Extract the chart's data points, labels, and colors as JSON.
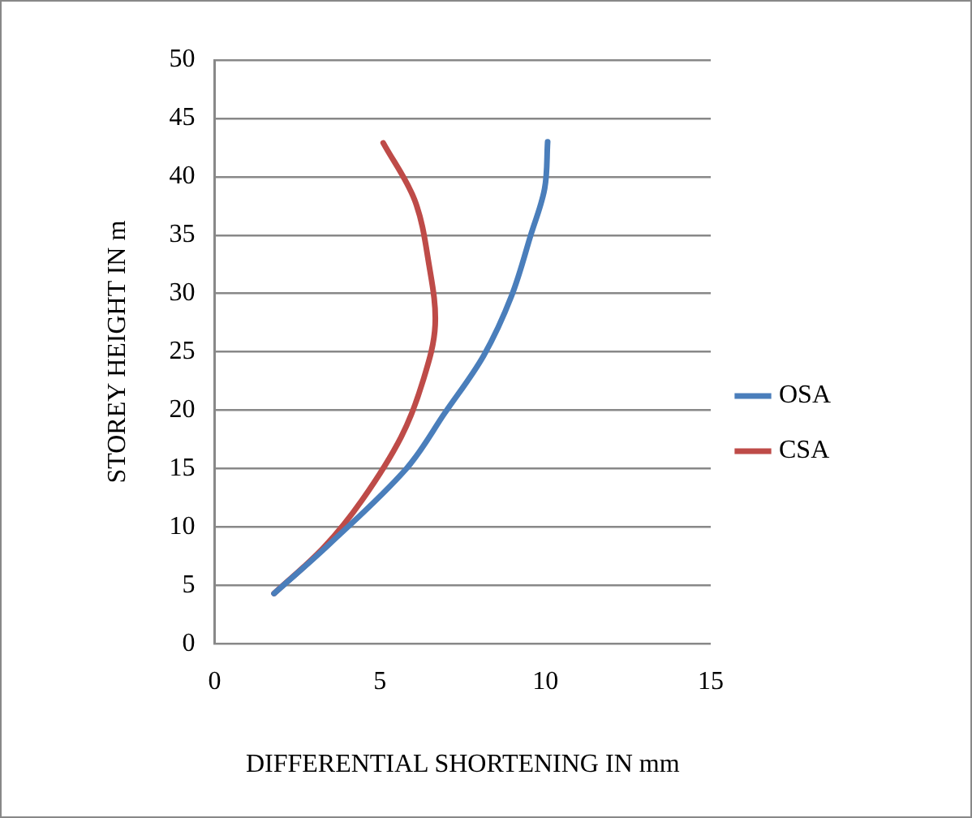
{
  "chart_data": {
    "type": "line",
    "xlabel": "DIFFERENTIAL SHORTENING IN mm",
    "ylabel": "STOREY HEIGHT IN m",
    "xlim": [
      0,
      15
    ],
    "xticks": [
      0,
      5,
      10,
      15
    ],
    "ylim": [
      0,
      50
    ],
    "yticks": [
      0,
      5,
      10,
      15,
      20,
      25,
      30,
      35,
      40,
      45,
      50
    ],
    "grid": "y",
    "legend": "right",
    "marker": "none",
    "line_style": "solid",
    "series": [
      {
        "name": "OSA",
        "color": "#4a7ebb",
        "x": [
          1.8,
          3.46,
          5.8,
          6.97,
          8.14,
          8.98,
          9.57,
          9.98,
          10.07
        ],
        "values": [
          4.3,
          8.5,
          15.0,
          19.8,
          24.7,
          29.8,
          35.1,
          39.0,
          43.0
        ]
      },
      {
        "name": "CSA",
        "color": "#be4b48",
        "x": [
          1.8,
          3.29,
          4.46,
          5.64,
          6.3,
          6.67,
          6.47,
          6.05,
          5.1
        ],
        "values": [
          4.3,
          8.2,
          12.3,
          17.7,
          22.5,
          27.3,
          32.7,
          38.0,
          42.9
        ]
      }
    ]
  }
}
